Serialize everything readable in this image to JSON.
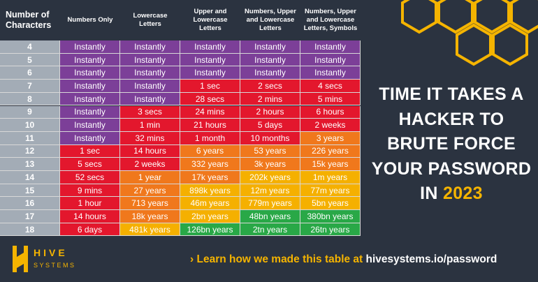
{
  "table": {
    "headers": [
      "Number of Characters",
      "Numbers Only",
      "Lowercase Letters",
      "Upper and Lowercase Letters",
      "Numbers, Upper and Lowercase Letters",
      "Numbers, Upper and Lowercase Letters, Symbols"
    ],
    "rows": [
      {
        "chars": "4",
        "cells": [
          "Instantly",
          "Instantly",
          "Instantly",
          "Instantly",
          "Instantly"
        ],
        "colors": [
          "#7c3f98",
          "#7c3f98",
          "#7c3f98",
          "#7c3f98",
          "#7c3f98"
        ]
      },
      {
        "chars": "5",
        "cells": [
          "Instantly",
          "Instantly",
          "Instantly",
          "Instantly",
          "Instantly"
        ],
        "colors": [
          "#7c3f98",
          "#7c3f98",
          "#7c3f98",
          "#7c3f98",
          "#7c3f98"
        ]
      },
      {
        "chars": "6",
        "cells": [
          "Instantly",
          "Instantly",
          "Instantly",
          "Instantly",
          "Instantly"
        ],
        "colors": [
          "#7c3f98",
          "#7c3f98",
          "#7c3f98",
          "#7c3f98",
          "#7c3f98"
        ]
      },
      {
        "chars": "7",
        "cells": [
          "Instantly",
          "Instantly",
          "1 sec",
          "2 secs",
          "4 secs"
        ],
        "colors": [
          "#7c3f98",
          "#7c3f98",
          "#e3172d",
          "#e3172d",
          "#e3172d"
        ]
      },
      {
        "chars": "8",
        "cells": [
          "Instantly",
          "Instantly",
          "28 secs",
          "2 mins",
          "5 mins"
        ],
        "colors": [
          "#7c3f98",
          "#7c3f98",
          "#e3172d",
          "#e3172d",
          "#e3172d"
        ]
      },
      {
        "chars": "9",
        "cells": [
          "Instantly",
          "3 secs",
          "24 mins",
          "2 hours",
          "6 hours"
        ],
        "colors": [
          "#7c3f98",
          "#e3172d",
          "#e3172d",
          "#e3172d",
          "#e3172d"
        ]
      },
      {
        "chars": "10",
        "cells": [
          "Instantly",
          "1 min",
          "21 hours",
          "5 days",
          "2 weeks"
        ],
        "colors": [
          "#7c3f98",
          "#e3172d",
          "#e3172d",
          "#e3172d",
          "#e3172d"
        ]
      },
      {
        "chars": "11",
        "cells": [
          "Instantly",
          "32 mins",
          "1 month",
          "10 months",
          "3 years"
        ],
        "colors": [
          "#7c3f98",
          "#e3172d",
          "#e3172d",
          "#e3172d",
          "#f0781c"
        ]
      },
      {
        "chars": "12",
        "cells": [
          "1 sec",
          "14 hours",
          "6 years",
          "53 years",
          "226 years"
        ],
        "colors": [
          "#e3172d",
          "#e3172d",
          "#f0781c",
          "#f0781c",
          "#f0781c"
        ]
      },
      {
        "chars": "13",
        "cells": [
          "5 secs",
          "2 weeks",
          "332 years",
          "3k years",
          "15k years"
        ],
        "colors": [
          "#e3172d",
          "#e3172d",
          "#f0781c",
          "#f0781c",
          "#f0781c"
        ]
      },
      {
        "chars": "14",
        "cells": [
          "52 secs",
          "1 year",
          "17k years",
          "202k years",
          "1m years"
        ],
        "colors": [
          "#e3172d",
          "#f0781c",
          "#f0781c",
          "#f5b000",
          "#f5b000"
        ]
      },
      {
        "chars": "15",
        "cells": [
          "9 mins",
          "27 years",
          "898k years",
          "12m years",
          "77m years"
        ],
        "colors": [
          "#e3172d",
          "#f0781c",
          "#f5b000",
          "#f5b000",
          "#f5b000"
        ]
      },
      {
        "chars": "16",
        "cells": [
          "1 hour",
          "713 years",
          "46m years",
          "779m years",
          "5bn years"
        ],
        "colors": [
          "#e3172d",
          "#f0781c",
          "#f5b000",
          "#f5b000",
          "#f5b000"
        ]
      },
      {
        "chars": "17",
        "cells": [
          "14 hours",
          "18k years",
          "2bn years",
          "48bn years",
          "380bn years"
        ],
        "colors": [
          "#e3172d",
          "#f0781c",
          "#f5b000",
          "#29a847",
          "#29a847"
        ]
      },
      {
        "chars": "18",
        "cells": [
          "6 days",
          "481k years",
          "126bn years",
          "2tn years",
          "26tn years"
        ],
        "colors": [
          "#e3172d",
          "#f5b000",
          "#29a847",
          "#29a847",
          "#29a847"
        ]
      }
    ]
  },
  "title": "TIME IT TAKES A HACKER TO BRUTE FORCE YOUR PASSWORD IN",
  "year": "2023",
  "logo": {
    "name": "HIVE",
    "sub": "SYSTEMS"
  },
  "footer": {
    "text": "Learn how we made this table at",
    "link": "hivesystems.io/password"
  }
}
